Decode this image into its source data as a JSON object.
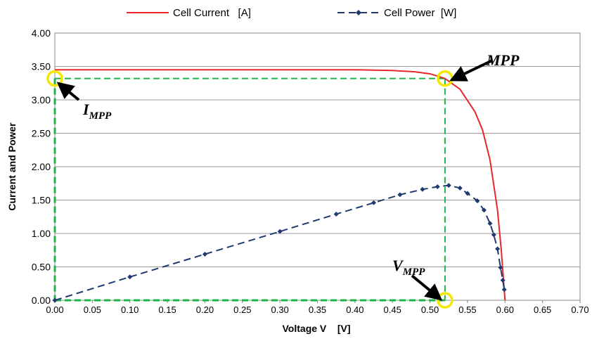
{
  "chart_data": {
    "type": "line",
    "xlabel": "Voltage V    [V]",
    "ylabel": "Current and Power",
    "xlim": [
      0,
      0.7
    ],
    "ylim": [
      0,
      4
    ],
    "xticks": [
      {
        "value": 0,
        "label": "0.00"
      },
      0.05,
      {
        "value": 0.1,
        "label": "0.10"
      },
      0.15,
      {
        "value": 0.2,
        "label": "0.20"
      },
      0.25,
      {
        "value": 0.3,
        "label": "0.30"
      },
      0.35,
      {
        "value": 0.4,
        "label": "0.40"
      },
      0.45,
      {
        "value": 0.5,
        "label": "0.50"
      },
      0.55,
      {
        "value": 0.6,
        "label": "0.60"
      },
      0.65,
      {
        "value": 0.7,
        "label": "0.70"
      }
    ],
    "yticks": [
      {
        "value": 0,
        "label": "0.00"
      },
      {
        "value": 0.5,
        "label": "0.50"
      },
      {
        "value": 1,
        "label": "1.00"
      },
      {
        "value": 1.5,
        "label": "1.50"
      },
      {
        "value": 2,
        "label": "2.00"
      },
      {
        "value": 2.5,
        "label": "2.50"
      },
      {
        "value": 3,
        "label": "3.00"
      },
      {
        "value": 3.5,
        "label": "3.50"
      },
      {
        "value": 4,
        "label": "4.00"
      }
    ],
    "grid": true,
    "series": [
      {
        "name": "Cell Current   [A]",
        "color": "#e8262b",
        "dashed": false,
        "markers": false,
        "x": [
          0,
          0.1,
          0.2,
          0.3,
          0.4,
          0.45,
          0.48,
          0.5,
          0.52,
          0.54,
          0.56,
          0.57,
          0.58,
          0.59,
          0.595,
          0.6
        ],
        "values": [
          3.45,
          3.45,
          3.45,
          3.45,
          3.45,
          3.44,
          3.42,
          3.39,
          3.32,
          3.16,
          2.82,
          2.55,
          2.1,
          1.35,
          0.75,
          0
        ]
      },
      {
        "name": "Cell Power  [W]",
        "color": "#1f3a6e",
        "dashed": true,
        "markers": true,
        "x": [
          0,
          0.1,
          0.2,
          0.3,
          0.375,
          0.425,
          0.46,
          0.49,
          0.51,
          0.525,
          0.54,
          0.55,
          0.563,
          0.572,
          0.58,
          0.585,
          0.59,
          0.594,
          0.597,
          0.599
        ],
        "values": [
          0,
          0.35,
          0.69,
          1.03,
          1.29,
          1.46,
          1.58,
          1.66,
          1.7,
          1.72,
          1.68,
          1.6,
          1.49,
          1.35,
          1.15,
          0.98,
          0.77,
          0.49,
          0.3,
          0.16
        ]
      }
    ],
    "mpp": {
      "v": 0.52,
      "i": 3.32,
      "color": "#22b14c"
    },
    "annotations": {
      "mpp": "MPP",
      "impp": {
        "text": "I",
        "sub": "MPP"
      },
      "vmpp": {
        "text": "V",
        "sub": "MPP"
      }
    }
  }
}
